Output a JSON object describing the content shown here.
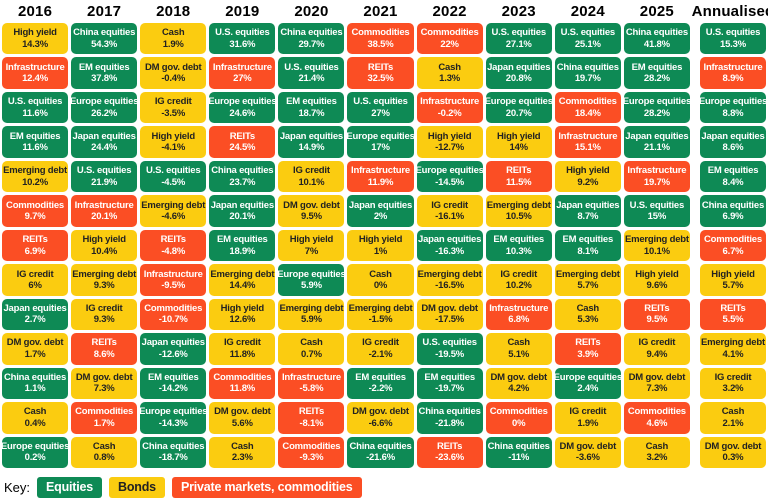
{
  "chart_data": {
    "type": "table",
    "description": "Periodic table of annual asset class returns, ranked best to worst per year",
    "colors": {
      "equities": "#0E8A55",
      "bonds": "#FBCC10",
      "private": "#FB4E24"
    },
    "category_map": {
      "U.S. equities": "eq",
      "EM equities": "eq",
      "Japan equities": "eq",
      "China equities": "eq",
      "Europe equities": "eq",
      "High yield": "bd",
      "Emerging debt": "bd",
      "IG credit": "bd",
      "DM gov. debt": "bd",
      "Cash": "bd",
      "Infrastructure": "pm",
      "Commodities": "pm",
      "REITs": "pm"
    },
    "columns": [
      {
        "label": "2016",
        "cells": [
          [
            "High yield",
            "14.3%"
          ],
          [
            "Infrastructure",
            "12.4%"
          ],
          [
            "U.S. equities",
            "11.6%"
          ],
          [
            "EM equities",
            "11.6%"
          ],
          [
            "Emerging debt",
            "10.2%"
          ],
          [
            "Commodities",
            "9.7%"
          ],
          [
            "REITs",
            "6.9%"
          ],
          [
            "IG credit",
            "6%"
          ],
          [
            "Japan equities",
            "2.7%"
          ],
          [
            "DM gov. debt",
            "1.7%"
          ],
          [
            "China equities",
            "1.1%"
          ],
          [
            "Cash",
            "0.4%"
          ],
          [
            "Europe equities",
            "0.2%"
          ]
        ]
      },
      {
        "label": "2017",
        "cells": [
          [
            "China equities",
            "54.3%"
          ],
          [
            "EM equities",
            "37.8%"
          ],
          [
            "Europe equities",
            "26.2%"
          ],
          [
            "Japan equities",
            "24.4%"
          ],
          [
            "U.S. equities",
            "21.9%"
          ],
          [
            "Infrastructure",
            "20.1%"
          ],
          [
            "High yield",
            "10.4%"
          ],
          [
            "Emerging debt",
            "9.3%"
          ],
          [
            "IG credit",
            "9.3%"
          ],
          [
            "REITs",
            "8.6%"
          ],
          [
            "DM gov. debt",
            "7.3%"
          ],
          [
            "Commodities",
            "1.7%"
          ],
          [
            "Cash",
            "0.8%"
          ]
        ]
      },
      {
        "label": "2018",
        "cells": [
          [
            "Cash",
            "1.9%"
          ],
          [
            "DM gov. debt",
            "-0.4%"
          ],
          [
            "IG credit",
            "-3.5%"
          ],
          [
            "High yield",
            "-4.1%"
          ],
          [
            "U.S. equities",
            "-4.5%"
          ],
          [
            "Emerging debt",
            "-4.6%"
          ],
          [
            "REITs",
            "-4.8%"
          ],
          [
            "Infrastructure",
            "-9.5%"
          ],
          [
            "Commodities",
            "-10.7%"
          ],
          [
            "Japan equities",
            "-12.6%"
          ],
          [
            "EM equities",
            "-14.2%"
          ],
          [
            "Europe equities",
            "-14.3%"
          ],
          [
            "China equities",
            "-18.7%"
          ]
        ]
      },
      {
        "label": "2019",
        "cells": [
          [
            "U.S. equities",
            "31.6%"
          ],
          [
            "Infrastructure",
            "27%"
          ],
          [
            "Europe equities",
            "24.6%"
          ],
          [
            "REITs",
            "24.5%"
          ],
          [
            "China equities",
            "23.7%"
          ],
          [
            "Japan equities",
            "20.1%"
          ],
          [
            "EM equities",
            "18.9%"
          ],
          [
            "Emerging debt",
            "14.4%"
          ],
          [
            "High yield",
            "12.6%"
          ],
          [
            "IG credit",
            "11.8%"
          ],
          [
            "Commodities",
            "11.8%"
          ],
          [
            "DM gov. debt",
            "5.6%"
          ],
          [
            "Cash",
            "2.3%"
          ]
        ]
      },
      {
        "label": "2020",
        "cells": [
          [
            "China equities",
            "29.7%"
          ],
          [
            "U.S. equities",
            "21.4%"
          ],
          [
            "EM equities",
            "18.7%"
          ],
          [
            "Japan equities",
            "14.9%"
          ],
          [
            "IG credit",
            "10.1%"
          ],
          [
            "DM gov. debt",
            "9.5%"
          ],
          [
            "High yield",
            "7%"
          ],
          [
            "Europe equities",
            "5.9%"
          ],
          [
            "Emerging debt",
            "5.9%"
          ],
          [
            "Cash",
            "0.7%"
          ],
          [
            "Infrastructure",
            "-5.8%"
          ],
          [
            "REITs",
            "-8.1%"
          ],
          [
            "Commodities",
            "-9.3%"
          ]
        ]
      },
      {
        "label": "2021",
        "cells": [
          [
            "Commodities",
            "38.5%"
          ],
          [
            "REITs",
            "32.5%"
          ],
          [
            "U.S. equities",
            "27%"
          ],
          [
            "Europe equities",
            "17%"
          ],
          [
            "Infrastructure",
            "11.9%"
          ],
          [
            "Japan equities",
            "2%"
          ],
          [
            "High yield",
            "1%"
          ],
          [
            "Cash",
            "0%"
          ],
          [
            "Emerging debt",
            "-1.5%"
          ],
          [
            "IG credit",
            "-2.1%"
          ],
          [
            "EM equities",
            "-2.2%"
          ],
          [
            "DM gov. debt",
            "-6.6%"
          ],
          [
            "China equities",
            "-21.6%"
          ]
        ]
      },
      {
        "label": "2022",
        "cells": [
          [
            "Commodities",
            "22%"
          ],
          [
            "Cash",
            "1.3%"
          ],
          [
            "Infrastructure",
            "-0.2%"
          ],
          [
            "High yield",
            "-12.7%"
          ],
          [
            "Europe equities",
            "-14.5%"
          ],
          [
            "IG credit",
            "-16.1%"
          ],
          [
            "Japan equities",
            "-16.3%"
          ],
          [
            "Emerging debt",
            "-16.5%"
          ],
          [
            "DM gov. debt",
            "-17.5%"
          ],
          [
            "U.S. equities",
            "-19.5%"
          ],
          [
            "EM equities",
            "-19.7%"
          ],
          [
            "China equities",
            "-21.8%"
          ],
          [
            "REITs",
            "-23.6%"
          ]
        ]
      },
      {
        "label": "2023",
        "cells": [
          [
            "U.S. equities",
            "27.1%"
          ],
          [
            "Japan equities",
            "20.8%"
          ],
          [
            "Europe equities",
            "20.7%"
          ],
          [
            "High yield",
            "14%"
          ],
          [
            "REITs",
            "11.5%"
          ],
          [
            "Emerging debt",
            "10.5%"
          ],
          [
            "EM equities",
            "10.3%"
          ],
          [
            "IG credit",
            "10.2%"
          ],
          [
            "Infrastructure",
            "6.8%"
          ],
          [
            "Cash",
            "5.1%"
          ],
          [
            "DM gov. debt",
            "4.2%"
          ],
          [
            "Commodities",
            "0%"
          ],
          [
            "China equities",
            "-11%"
          ]
        ]
      },
      {
        "label": "2024",
        "cells": [
          [
            "U.S. equities",
            "25.1%"
          ],
          [
            "China equities",
            "19.7%"
          ],
          [
            "Commodities",
            "18.4%"
          ],
          [
            "Infrastructure",
            "15.1%"
          ],
          [
            "High yield",
            "9.2%"
          ],
          [
            "Japan equities",
            "8.7%"
          ],
          [
            "EM equities",
            "8.1%"
          ],
          [
            "Emerging debt",
            "5.7%"
          ],
          [
            "Cash",
            "5.3%"
          ],
          [
            "REITs",
            "3.9%"
          ],
          [
            "Europe equities",
            "2.4%"
          ],
          [
            "IG credit",
            "1.9%"
          ],
          [
            "DM gov. debt",
            "-3.6%"
          ]
        ]
      },
      {
        "label": "2025",
        "cells": [
          [
            "China equities",
            "41.8%"
          ],
          [
            "EM equities",
            "28.2%"
          ],
          [
            "Europe equities",
            "28.2%"
          ],
          [
            "Japan equities",
            "21.1%"
          ],
          [
            "Infrastructure",
            "19.7%"
          ],
          [
            "U.S. equities",
            "15%"
          ],
          [
            "Emerging debt",
            "10.1%"
          ],
          [
            "High yield",
            "9.6%"
          ],
          [
            "REITs",
            "9.5%"
          ],
          [
            "IG credit",
            "9.4%"
          ],
          [
            "DM gov. debt",
            "7.3%"
          ],
          [
            "Commodities",
            "4.6%"
          ],
          [
            "Cash",
            "3.2%"
          ]
        ]
      },
      {
        "label": "Annualised",
        "cells": [
          [
            "U.S. equities",
            "15.3%"
          ],
          [
            "Infrastructure",
            "8.9%"
          ],
          [
            "Europe equities",
            "8.8%"
          ],
          [
            "Japan equities",
            "8.6%"
          ],
          [
            "EM equities",
            "8.4%"
          ],
          [
            "China equities",
            "6.9%"
          ],
          [
            "Commodities",
            "6.7%"
          ],
          [
            "High yield",
            "5.7%"
          ],
          [
            "REITs",
            "5.5%"
          ],
          [
            "Emerging debt",
            "4.1%"
          ],
          [
            "IG credit",
            "3.2%"
          ],
          [
            "Cash",
            "2.1%"
          ],
          [
            "DM gov. debt",
            "0.3%"
          ]
        ]
      }
    ],
    "legend": {
      "label": "Key:",
      "position": "bottom-left",
      "items": [
        {
          "label": "Equities",
          "cat": "eq",
          "color": "#0E8A55"
        },
        {
          "label": "Bonds",
          "cat": "bd",
          "color": "#FBCC10"
        },
        {
          "label": "Private markets, commodities",
          "cat": "pm",
          "color": "#FB4E24"
        }
      ]
    }
  }
}
